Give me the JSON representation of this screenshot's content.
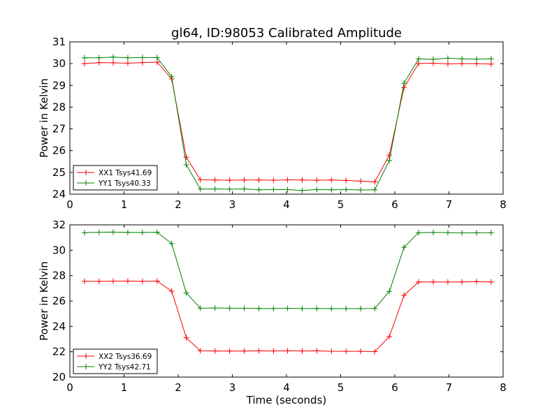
{
  "title": "gl64, ID:98053 Calibrated Amplitude",
  "chart_data": [
    {
      "type": "line",
      "title": "gl64, ID:98053 Calibrated Amplitude",
      "xlabel": "",
      "ylabel": "Power in Kelvin",
      "xlim": [
        0,
        8
      ],
      "ylim": [
        24,
        31
      ],
      "xticks": [
        "0",
        "1",
        "2",
        "3",
        "4",
        "5",
        "6",
        "7",
        "8"
      ],
      "yticks": [
        "24",
        "25",
        "26",
        "27",
        "28",
        "29",
        "30",
        "31"
      ],
      "legend_placement": "lower-left",
      "grid": false,
      "x": [
        0.27,
        0.54,
        0.8,
        1.07,
        1.34,
        1.61,
        1.88,
        2.15,
        2.41,
        2.68,
        2.95,
        3.22,
        3.49,
        3.76,
        4.02,
        4.29,
        4.56,
        4.83,
        5.1,
        5.37,
        5.63,
        5.9,
        6.17,
        6.44,
        6.71,
        6.98,
        7.24,
        7.51,
        7.78
      ],
      "series": [
        {
          "name": "XX1 Tsys41.69",
          "color": "#ff0000",
          "values": [
            30.0,
            30.05,
            30.04,
            30.02,
            30.05,
            30.07,
            29.3,
            25.7,
            24.66,
            24.65,
            24.64,
            24.65,
            24.65,
            24.64,
            24.66,
            24.65,
            24.64,
            24.65,
            24.63,
            24.6,
            24.56,
            25.8,
            28.9,
            30.01,
            30.02,
            29.99,
            30.0,
            30.0,
            29.98
          ]
        },
        {
          "name": "YY1 Tsys40.33",
          "color": "#008000",
          "values": [
            30.27,
            30.27,
            30.3,
            30.27,
            30.28,
            30.28,
            29.4,
            25.35,
            24.23,
            24.24,
            24.23,
            24.24,
            24.2,
            24.21,
            24.21,
            24.17,
            24.21,
            24.2,
            24.21,
            24.19,
            24.2,
            25.55,
            29.1,
            30.22,
            30.2,
            30.25,
            30.22,
            30.21,
            30.22
          ]
        }
      ]
    },
    {
      "type": "line",
      "title": "",
      "xlabel": "Time (seconds)",
      "ylabel": "Power in Kelvin",
      "xlim": [
        0,
        8
      ],
      "ylim": [
        20,
        32
      ],
      "xticks": [
        "0",
        "1",
        "2",
        "3",
        "4",
        "5",
        "6",
        "7",
        "8"
      ],
      "yticks": [
        "20",
        "22",
        "24",
        "26",
        "28",
        "30",
        "32"
      ],
      "legend_placement": "lower-left",
      "grid": false,
      "x": [
        0.27,
        0.54,
        0.8,
        1.07,
        1.34,
        1.61,
        1.88,
        2.15,
        2.41,
        2.68,
        2.95,
        3.22,
        3.49,
        3.76,
        4.02,
        4.29,
        4.56,
        4.83,
        5.1,
        5.37,
        5.63,
        5.9,
        6.17,
        6.44,
        6.71,
        6.98,
        7.24,
        7.51,
        7.78
      ],
      "series": [
        {
          "name": "XX2 Tsys36.69",
          "color": "#ff0000",
          "values": [
            27.55,
            27.55,
            27.56,
            27.57,
            27.55,
            27.57,
            26.78,
            23.1,
            22.07,
            22.06,
            22.05,
            22.06,
            22.07,
            22.06,
            22.07,
            22.06,
            22.07,
            22.04,
            22.03,
            22.03,
            22.01,
            23.2,
            26.45,
            27.5,
            27.5,
            27.49,
            27.5,
            27.53,
            27.5
          ]
        },
        {
          "name": "YY2 Tsys42.71",
          "color": "#008000",
          "values": [
            31.38,
            31.42,
            31.43,
            31.41,
            31.4,
            31.42,
            30.52,
            26.63,
            25.43,
            25.45,
            25.43,
            25.42,
            25.41,
            25.4,
            25.42,
            25.4,
            25.41,
            25.4,
            25.4,
            25.4,
            25.41,
            26.76,
            30.23,
            31.39,
            31.4,
            31.39,
            31.37,
            31.38,
            31.38
          ]
        }
      ]
    }
  ]
}
